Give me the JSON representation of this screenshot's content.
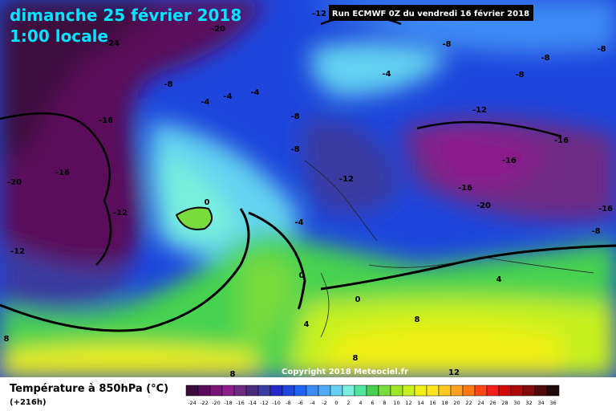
{
  "map": {
    "title": "dimanche 25 février 2018",
    "subtitle": "1:00 locale",
    "run": "Run ECMWF 0Z du vendredi 16 février 2018",
    "copyright": "Copyright 2018 Meteociel.fr",
    "legend_title": "Température à 850hPa (°C)",
    "lead_time": "(+216h)",
    "contour_labels": [
      -24,
      -20,
      -12,
      -8,
      -4,
      -4,
      -4,
      -8,
      -16,
      -16,
      -20,
      -12,
      -12,
      -8,
      -12,
      -4,
      0,
      0,
      0,
      4,
      8,
      8,
      12,
      8,
      8,
      -4,
      -8,
      -8,
      -8,
      -8,
      -12,
      -16,
      -16,
      -16,
      -20,
      -16,
      -8,
      4
    ],
    "colorbar": {
      "ticks": [
        -24,
        -22,
        -20,
        -18,
        -16,
        -14,
        -12,
        -10,
        -8,
        -6,
        -4,
        -2,
        0,
        2,
        4,
        6,
        8,
        10,
        12,
        14,
        16,
        18,
        20,
        22,
        24,
        26,
        28,
        30,
        32,
        34,
        36
      ],
      "colors": [
        "#3c0a3c",
        "#5a0a5a",
        "#781478",
        "#8c1e8c",
        "#6e2a82",
        "#4a2a7a",
        "#3a3aa0",
        "#2828c8",
        "#1e46dc",
        "#1e64f0",
        "#3c8cf5",
        "#50aaf5",
        "#64d2f0",
        "#78f0dc",
        "#50e6a0",
        "#46d250",
        "#78dc3c",
        "#a0e628",
        "#c8f01e",
        "#f0f014",
        "#ffe61e",
        "#ffc81e",
        "#ffa01e",
        "#ff7814",
        "#ff4614",
        "#f01e1e",
        "#d20a0a",
        "#aa0a0a",
        "#820a0a",
        "#500a0a",
        "#1e0a0a"
      ]
    }
  }
}
